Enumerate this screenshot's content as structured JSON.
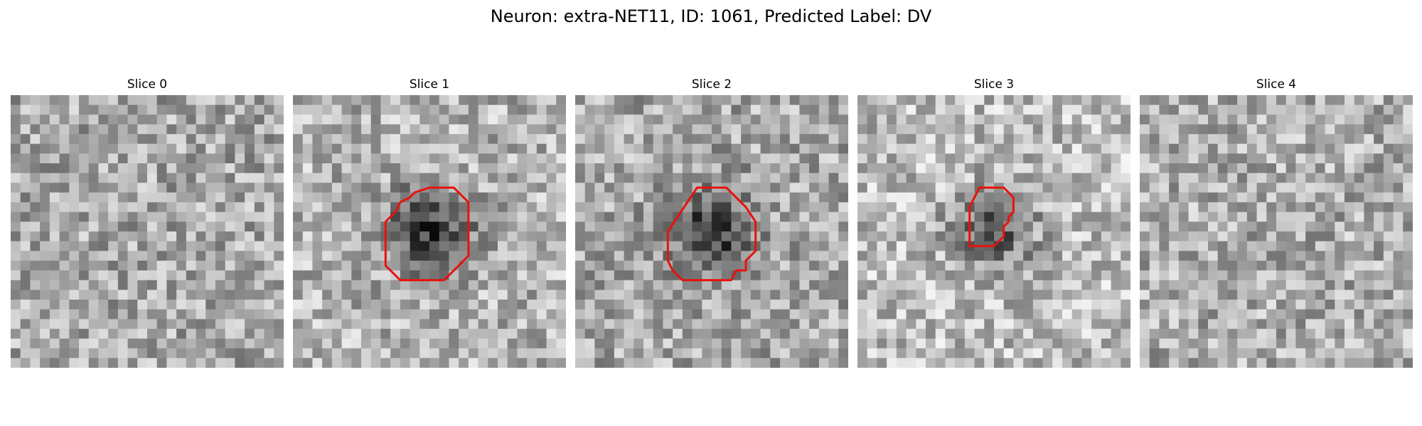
{
  "figure": {
    "title": "Neuron: extra-NET11, ID: 1061, Predicted Label: DV"
  },
  "contour_color": "#e8120c",
  "panels": [
    {
      "title": "Slice 0",
      "blob": 0.0,
      "base": 0.66,
      "contour": []
    },
    {
      "title": "Slice 1",
      "blob": 0.85,
      "base": 0.7,
      "contour": [
        [
          14,
          9.5
        ],
        [
          16.5,
          9.5
        ],
        [
          18,
          11
        ],
        [
          18,
          16.5
        ],
        [
          15.5,
          19
        ],
        [
          13,
          19
        ],
        [
          11,
          19
        ],
        [
          9.5,
          17.5
        ],
        [
          9.5,
          13
        ],
        [
          10.5,
          12
        ],
        [
          11,
          11
        ],
        [
          12,
          10.5
        ],
        [
          12.5,
          10
        ]
      ]
    },
    {
      "title": "Slice 2",
      "blob": 0.75,
      "base": 0.66,
      "contour": [
        [
          12.5,
          9.5
        ],
        [
          15.5,
          9.5
        ],
        [
          17.5,
          11.5
        ],
        [
          18.5,
          13
        ],
        [
          18.5,
          16
        ],
        [
          17.5,
          17
        ],
        [
          17.5,
          18
        ],
        [
          16.5,
          18
        ],
        [
          16,
          19
        ],
        [
          13,
          19
        ],
        [
          11,
          19
        ],
        [
          10,
          18
        ],
        [
          9.5,
          17
        ],
        [
          9.5,
          14
        ],
        [
          10.5,
          12.5
        ]
      ]
    },
    {
      "title": "Slice 3",
      "blob": 0.65,
      "base": 0.74,
      "contour": [
        [
          12.5,
          9.5
        ],
        [
          15,
          9.5
        ],
        [
          16,
          10.5
        ],
        [
          16,
          12
        ],
        [
          15.5,
          12.5
        ],
        [
          15.5,
          13
        ],
        [
          15,
          13.5
        ],
        [
          15,
          14.5
        ],
        [
          14.5,
          15
        ],
        [
          14,
          15.5
        ],
        [
          12.5,
          15.5
        ],
        [
          11.5,
          15.5
        ],
        [
          11.5,
          11.5
        ]
      ]
    },
    {
      "title": "Slice 4",
      "blob": 0.0,
      "base": 0.68,
      "contour": []
    }
  ]
}
